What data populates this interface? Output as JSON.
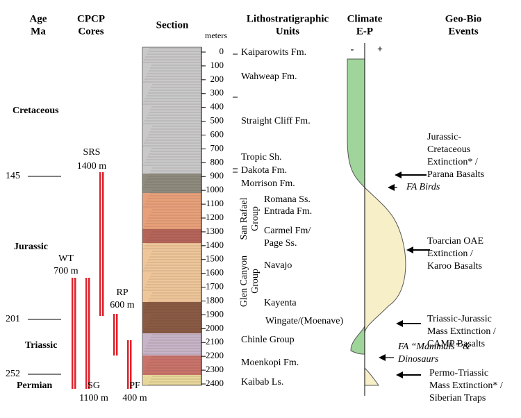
{
  "headers": {
    "age": [
      "Age",
      "Ma"
    ],
    "cores": [
      "CPCP",
      "Cores"
    ],
    "section": [
      "Section"
    ],
    "units": [
      "Lithostratigraphic",
      "Units"
    ],
    "climate": [
      "Climate",
      "E-P"
    ],
    "events": [
      "Geo-Bio",
      "Events"
    ]
  },
  "depth": {
    "unit": "meters",
    "ticks": [
      0,
      100,
      200,
      300,
      400,
      500,
      600,
      700,
      800,
      900,
      1000,
      1100,
      1200,
      1300,
      1400,
      1500,
      1600,
      1700,
      1800,
      1900,
      2000,
      2100,
      2200,
      2300,
      2400
    ]
  },
  "periods": [
    "Cretaceous",
    "Jurassic",
    "Triassic",
    "Permian"
  ],
  "ages": [
    145,
    201,
    252
  ],
  "cores": [
    {
      "name": "SRS",
      "length": "1400 m"
    },
    {
      "name": "WT",
      "length": "700 m"
    },
    {
      "name": "SG",
      "length": "1100 m"
    },
    {
      "name": "RP",
      "length": "600 m"
    },
    {
      "name": "PF",
      "length": "400 m"
    }
  ],
  "units": [
    "Kaiparowits Fm.",
    "Wahweap Fm.",
    "Straight Cliff Fm.",
    "Tropic Sh.",
    "Dakota Fm.",
    "Morrison Fm.",
    "Romana Ss.",
    "Entrada Fm.",
    "Carmel Fm/",
    "Page Ss.",
    "Navajo",
    "Kayenta",
    "Wingate/(Moenave)",
    "Chinle Group",
    "Moenkopi Fm.",
    "Kaibab Ls."
  ],
  "groups": [
    [
      "San Rafael",
      "Group"
    ],
    [
      "Glen Canyon",
      "Group"
    ]
  ],
  "climate_poles": [
    "-",
    "+"
  ],
  "events": [
    [
      "Jurassic-",
      "Cretaceous",
      "Extinction* /",
      "Parana Basalts"
    ],
    [
      "FA Birds"
    ],
    [
      "Toarcian OAE",
      "Extinction /",
      "Karoo Basalts"
    ],
    [
      "Triassic-Jurassic",
      "Mass Extinction /",
      "CAMP Basalts"
    ],
    [
      "FA “Mammals” &",
      "Dinosaurs"
    ],
    [
      "Permo-Triassic",
      "Mass Extinction* /",
      "Siberian Traps"
    ]
  ]
}
